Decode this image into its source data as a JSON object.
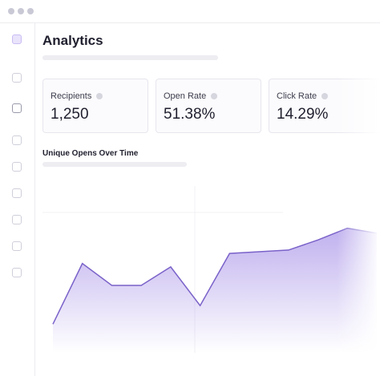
{
  "header": {
    "title": "Analytics"
  },
  "stats": [
    {
      "label": "Recipients",
      "value": "1,250"
    },
    {
      "label": "Open Rate",
      "value": "51.38%"
    },
    {
      "label": "Click Rate",
      "value": "14.29%"
    }
  ],
  "chart_data": {
    "type": "area",
    "title": "Unique Opens Over Time",
    "color": "#8b6fe0",
    "categories": [
      null,
      null,
      null,
      null,
      null,
      null,
      null,
      null,
      null,
      null,
      null,
      null
    ],
    "values": [
      17,
      53,
      40,
      40,
      51,
      28,
      59,
      60,
      61,
      67,
      74,
      71
    ],
    "ylim": [
      0,
      100
    ]
  }
}
